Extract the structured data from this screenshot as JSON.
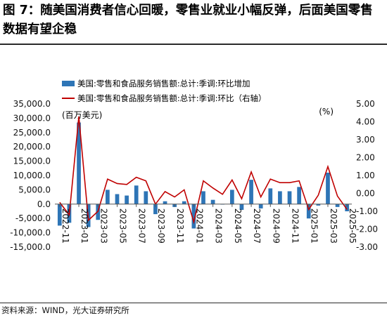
{
  "title": "图 7：随美国消费者信心回暖，零售业就业小幅反弹，后面美国零售数据有望企稳",
  "source": "资料来源：WIND，光大证券研究所",
  "colors": {
    "bar": "#2e75b6",
    "line": "#c00000",
    "axis": "#555555",
    "text": "#111111"
  },
  "chart_data": {
    "type": "bar+line",
    "legend_position": "top-right",
    "grid": false,
    "unit_left": "(百万美元)",
    "unit_right": "(%)",
    "x_tick_labels": [
      "2022-11",
      "2023-01",
      "2023-03",
      "2023-05",
      "2023-07",
      "2023-09",
      "2023-11",
      "2024-01",
      "2024-03",
      "2024-05",
      "2024-07",
      "2024-09",
      "2024-11",
      "2025-01",
      "2025-03",
      "2025-05"
    ],
    "x": [
      "2022-11",
      "2022-12",
      "2023-01",
      "2023-02",
      "2023-03",
      "2023-04",
      "2023-05",
      "2023-06",
      "2023-07",
      "2023-08",
      "2023-09",
      "2023-10",
      "2023-11",
      "2023-12",
      "2024-01",
      "2024-02",
      "2024-03",
      "2024-04",
      "2024-05",
      "2024-06",
      "2024-07",
      "2024-08",
      "2024-09",
      "2024-10",
      "2024-11",
      "2024-12",
      "2025-01",
      "2025-02",
      "2025-03",
      "2025-04",
      "2025-05"
    ],
    "y_left_ticks": [
      "35,000.0",
      "30,000.0",
      "25,000.0",
      "20,000.0",
      "15,000.0",
      "10,000.0",
      "5,000.0",
      "0.0",
      "-5,000.0",
      "-10,000.0",
      "-15,000.0"
    ],
    "y_right_ticks": [
      "5.00",
      "4.00",
      "3.00",
      "2.00",
      "1.00",
      "0.00",
      "-1.00",
      "-2.00",
      "-3.00"
    ],
    "ylim_left": [
      -15000,
      35000
    ],
    "ylim_right": [
      -3,
      5
    ],
    "series": [
      {
        "name": "美国:零售和食品服务销售额:总计:季调:环比增加",
        "type": "bar",
        "axis": "left",
        "values": [
          -7500,
          -6500,
          28500,
          -8000,
          -5500,
          5000,
          3500,
          3000,
          6500,
          4500,
          -3500,
          1000,
          -1000,
          1000,
          -8500,
          4500,
          1500,
          0,
          5000,
          -2000,
          8500,
          -1500,
          5500,
          4500,
          4500,
          6000,
          -5000,
          -500,
          11000,
          -1000,
          -2500
        ]
      },
      {
        "name": "美国:零售和食品服务销售额:总计:季调:环比（右轴）",
        "type": "line",
        "axis": "right",
        "values": [
          -0.5,
          -1.2,
          4.3,
          -1.5,
          -1.0,
          0.8,
          0.55,
          0.5,
          0.9,
          0.7,
          -0.6,
          0.1,
          -0.2,
          0.2,
          -1.6,
          0.7,
          0.3,
          -0.05,
          0.75,
          -0.3,
          1.2,
          -0.2,
          0.8,
          0.6,
          0.6,
          0.7,
          -0.9,
          -0.1,
          1.5,
          -0.15,
          -0.9
        ]
      }
    ]
  }
}
